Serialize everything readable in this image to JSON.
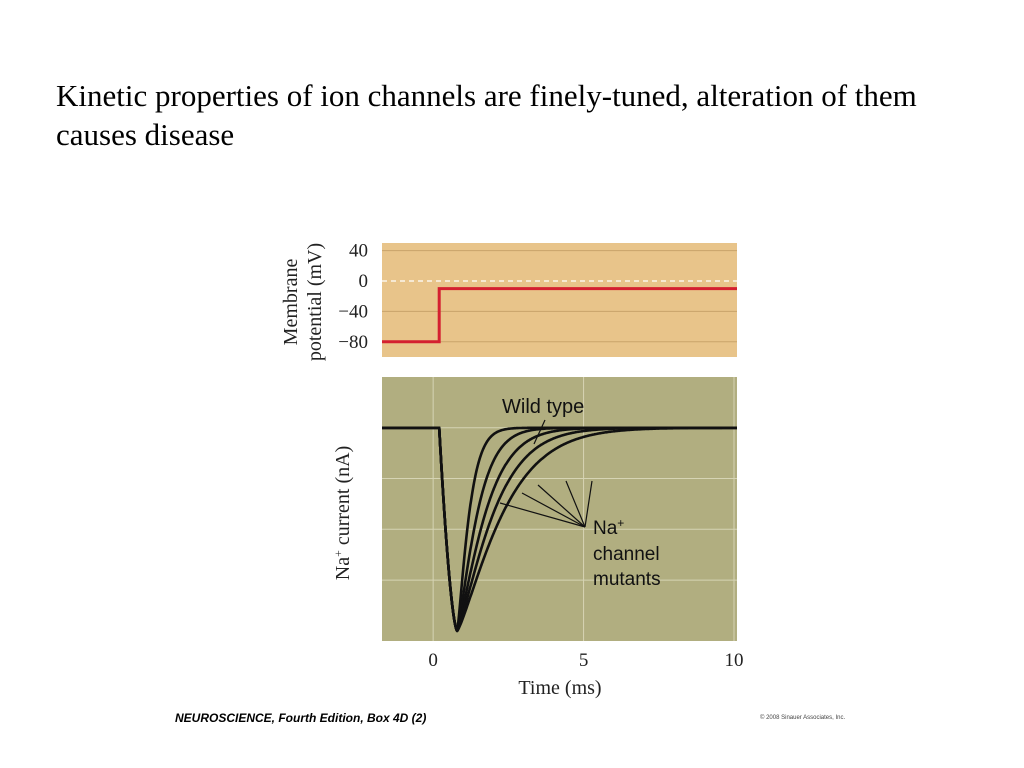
{
  "slide": {
    "title": "Kinetic properties of ion channels are finely-tuned, alteration of them causes disease"
  },
  "footer": {
    "credit": "NEUROSCIENCE, Fourth Edition, Box 4D (2)",
    "copyright": "© 2008 Sinauer Associates, Inc."
  },
  "chart_data": [
    {
      "type": "line",
      "title": "",
      "ylabel_line1": "Membrane",
      "ylabel_line2": "potential (mV)",
      "xlabel": "",
      "ylim": [
        -100,
        50
      ],
      "xlim": [
        -1.7,
        10.1
      ],
      "y_ticks": [
        "40",
        "0",
        "−40",
        "−80"
      ],
      "y_tick_values": [
        40,
        0,
        -40,
        -80
      ],
      "zero_line": "dashed",
      "grid": true,
      "background": "#e8c48a",
      "series": [
        {
          "color": "#d42030",
          "x": [
            -1.7,
            0.2,
            0.2,
            10.1
          ],
          "y": [
            -80,
            -80,
            -10,
            -10
          ]
        }
      ]
    },
    {
      "type": "line",
      "title": "",
      "ylabel": "Na+ current (nA)",
      "ylabel_parts": [
        "Na",
        "+",
        " current (nA)"
      ],
      "xlabel": "Time (ms)",
      "xlim": [
        -1.7,
        10.1
      ],
      "ylim": [
        -1.05,
        0.25
      ],
      "x_ticks": [
        "0",
        "5",
        "10"
      ],
      "x_tick_values": [
        0,
        5,
        10
      ],
      "grid": true,
      "background": "#b1ae80",
      "series": [
        {
          "color": "#111111",
          "onset": 0.2,
          "peak_x": 0.8,
          "peak_y": -1.0,
          "tau": 0.45
        },
        {
          "color": "#111111",
          "onset": 0.2,
          "peak_x": 0.8,
          "peak_y": -1.0,
          "tau": 0.75
        },
        {
          "color": "#111111",
          "onset": 0.2,
          "peak_x": 0.8,
          "peak_y": -1.0,
          "tau": 1.05
        },
        {
          "color": "#111111",
          "onset": 0.2,
          "peak_x": 0.8,
          "peak_y": -1.0,
          "tau": 1.35
        },
        {
          "color": "#111111",
          "onset": 0.2,
          "peak_x": 0.8,
          "peak_y": -1.0,
          "tau": 1.7
        }
      ],
      "annotations": {
        "wild_type": "Wild type",
        "mutants_line1": "Na",
        "mutants_sup": "+",
        "mutants_line2": "channel",
        "mutants_line3": "mutants"
      }
    }
  ]
}
